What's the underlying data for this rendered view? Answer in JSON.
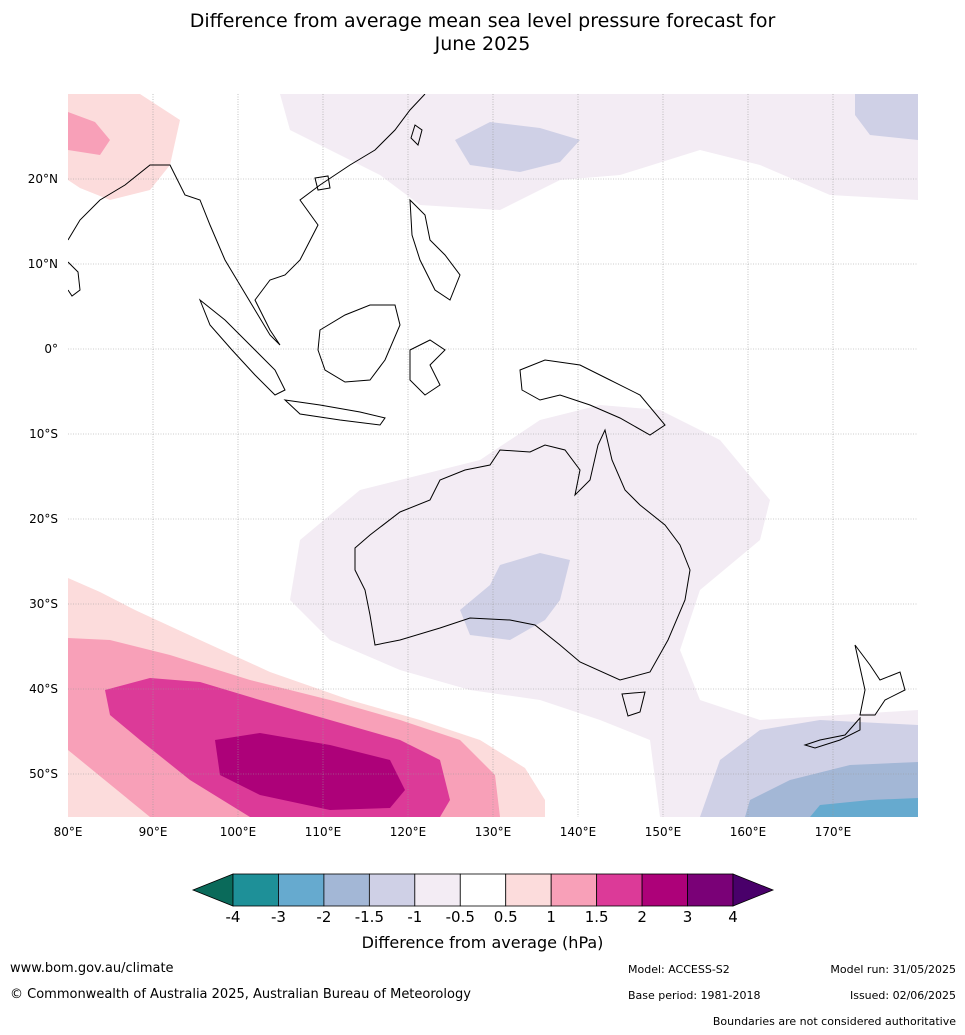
{
  "title_line1": "Difference from average mean sea level pressure forecast for",
  "title_line2": "June 2025",
  "map": {
    "lon_range": [
      80,
      180
    ],
    "lat_range": [
      -55,
      30
    ],
    "lon_ticks": [
      "80°E",
      "90°E",
      "100°E",
      "110°E",
      "120°E",
      "130°E",
      "140°E",
      "150°E",
      "160°E",
      "170°E"
    ],
    "lat_ticks": [
      "20°N",
      "10°N",
      "0°",
      "10°S",
      "20°S",
      "30°S",
      "40°S",
      "50°S"
    ]
  },
  "legend": {
    "title": "Difference from average (hPa)",
    "ticks": [
      "-4",
      "-3",
      "-2",
      "-1.5",
      "-1",
      "-0.5",
      "0.5",
      "1",
      "1.5",
      "2",
      "3",
      "4"
    ],
    "colors": [
      "#0a6a5a",
      "#1e9098",
      "#66aacf",
      "#a3b7d6",
      "#cfd0e6",
      "#f3ecf4",
      "#ffffff",
      "#fcdcdc",
      "#f8a0b8",
      "#dc3a98",
      "#ad0179",
      "#7a0177",
      "#49006a"
    ]
  },
  "footer": {
    "site": "www.bom.gov.au/climate",
    "copyright": "© Commonwealth of Australia 2025, Australian Bureau of Meteorology",
    "model": "Model: ACCESS-S2",
    "model_run": "Model run: 31/05/2025",
    "base_period": "Base period: 1981-2018",
    "issued": "Issued: 02/06/2025",
    "disclaimer": "Boundaries are not considered authoritative"
  }
}
